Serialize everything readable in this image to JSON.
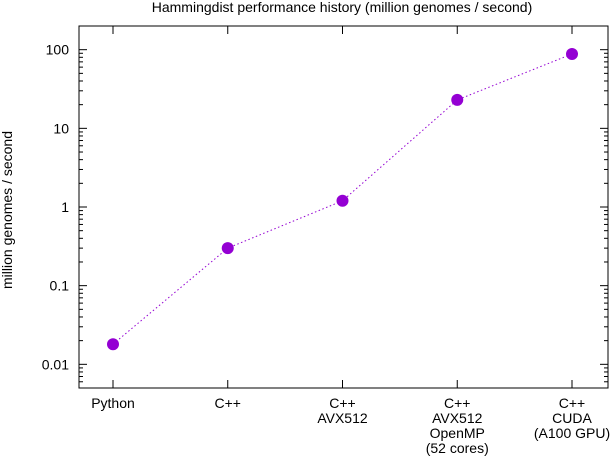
{
  "chart_data": {
    "type": "line",
    "title": "Hammingdist performance history (million genomes / second)",
    "xlabel": "",
    "ylabel": "million genomes / second",
    "yscale": "log",
    "ylim": [
      0.005,
      200
    ],
    "yticks": [
      {
        "value": 0.01,
        "label": "0.01"
      },
      {
        "value": 0.1,
        "label": "0.1"
      },
      {
        "value": 1,
        "label": "1"
      },
      {
        "value": 10,
        "label": "10"
      },
      {
        "value": 100,
        "label": "100"
      }
    ],
    "grid": false,
    "categories": [
      [
        "Python"
      ],
      [
        "C++"
      ],
      [
        "C++",
        "AVX512"
      ],
      [
        "C++",
        "AVX512",
        "OpenMP",
        "(52 cores)"
      ],
      [
        "C++",
        "CUDA",
        "(A100 GPU)"
      ]
    ],
    "series": [
      {
        "values": [
          0.018,
          0.3,
          1.2,
          23,
          88
        ],
        "color": "#9400d3",
        "line_style": "dotted",
        "marker": "circle"
      }
    ]
  }
}
